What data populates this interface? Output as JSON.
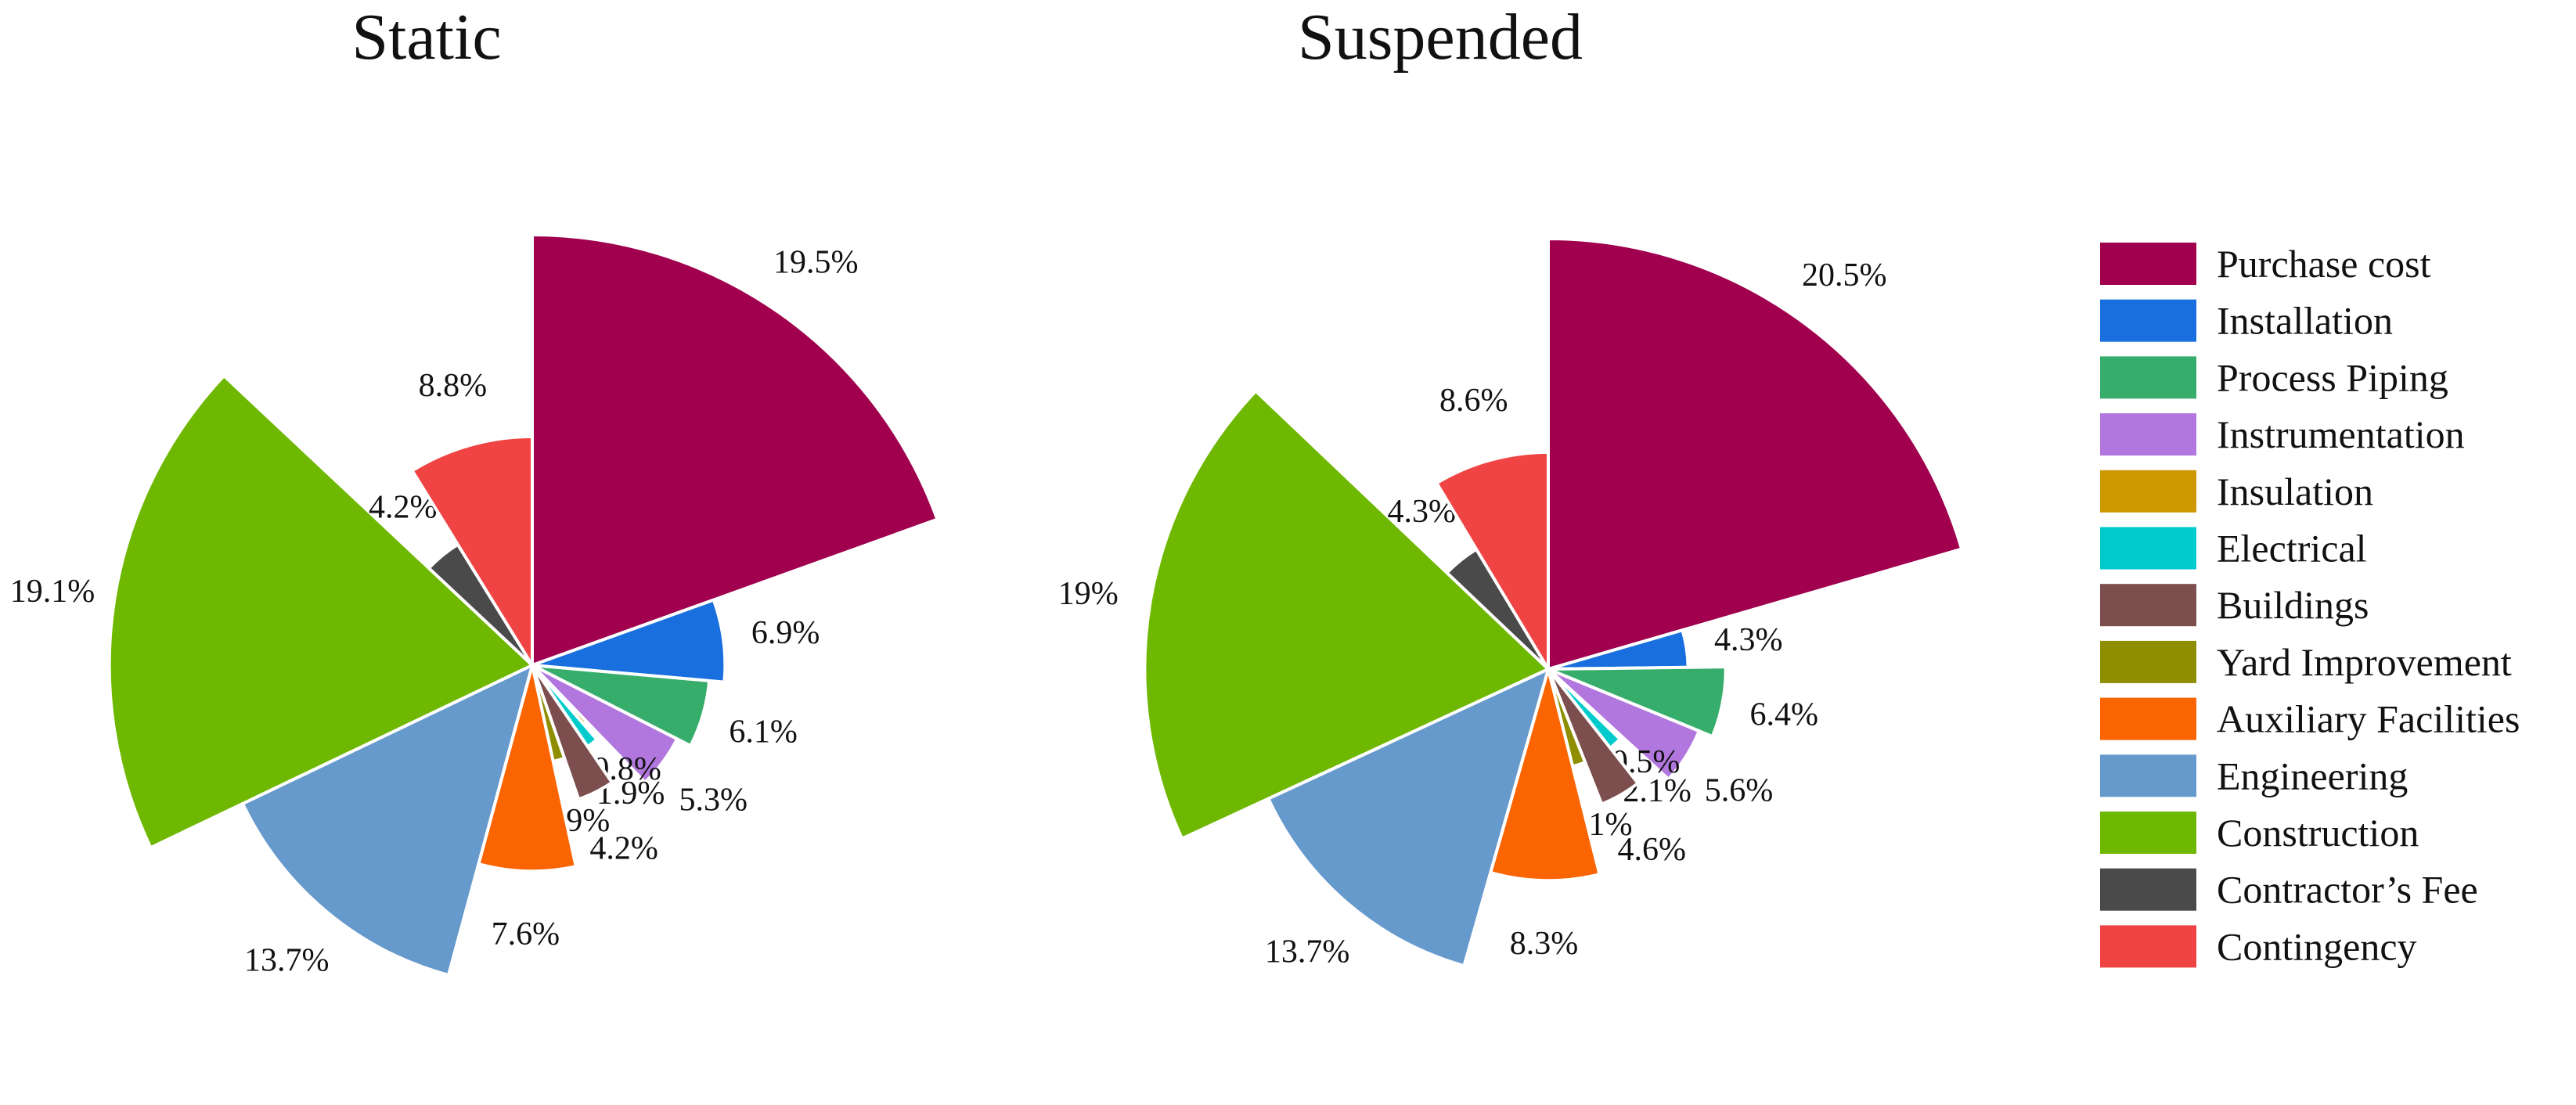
{
  "chart_data": [
    {
      "type": "pie",
      "title": "Static",
      "categories": [
        "Purchase cost",
        "Installation",
        "Process Piping",
        "Instrumentation",
        "Insulation",
        "Electrical",
        "Buildings",
        "Yard Improvement",
        "Auxiliary Facilities",
        "Engineering",
        "Construction",
        "Contractor’s Fee",
        "Contingency"
      ],
      "values": [
        19.5,
        6.9,
        6.1,
        5.3,
        0.8,
        1.9,
        4.2,
        1.9,
        7.6,
        13.7,
        19.1,
        4.2,
        8.8
      ],
      "labels": [
        "19.5%",
        "6.9%",
        "6.1%",
        "5.3%",
        "0.8%",
        "1.9%",
        "4.2%",
        "1.9%",
        "7.6%",
        "13.7%",
        "19.1%",
        "4.2%",
        "8.8%"
      ]
    },
    {
      "type": "pie",
      "title": "Suspended",
      "categories": [
        "Purchase cost",
        "Installation",
        "Process Piping",
        "Instrumentation",
        "Insulation",
        "Electrical",
        "Buildings",
        "Yard Improvement",
        "Auxiliary Facilities",
        "Engineering",
        "Construction",
        "Contractor’s Fee",
        "Contingency"
      ],
      "values": [
        20.5,
        4.3,
        6.4,
        5.6,
        0.5,
        2.1,
        4.6,
        2.1,
        8.3,
        13.7,
        19,
        4.3,
        8.6
      ],
      "labels": [
        "20.5%",
        "4.3%",
        "6.4%",
        "5.6%",
        "0.5%",
        "2.1%",
        "4.6%",
        "2.1%",
        "8.3%",
        "13.7%",
        "19%",
        "4.3%",
        "8.6%"
      ]
    }
  ],
  "legend": {
    "placement": "right",
    "items": [
      {
        "label": "Purchase cost",
        "color": "#A0004E"
      },
      {
        "label": "Installation",
        "color": "#1A6FDF"
      },
      {
        "label": "Process Piping",
        "color": "#37AD6B"
      },
      {
        "label": "Instrumentation",
        "color": "#B177DE"
      },
      {
        "label": "Insulation",
        "color": "#CC9900"
      },
      {
        "label": "Electrical",
        "color": "#00CBCC"
      },
      {
        "label": "Buildings",
        "color": "#7D4E4E"
      },
      {
        "label": "Yard Improvement",
        "color": "#8E8E00"
      },
      {
        "label": "Auxiliary Facilities",
        "color": "#FB6501"
      },
      {
        "label": "Engineering",
        "color": "#6699CC"
      },
      {
        "label": "Construction",
        "color": "#6FB802"
      },
      {
        "label": "Contractor’s Fee",
        "color": "#4A4A4A"
      },
      {
        "label": "Contingency",
        "color": "#F04444"
      }
    ]
  }
}
